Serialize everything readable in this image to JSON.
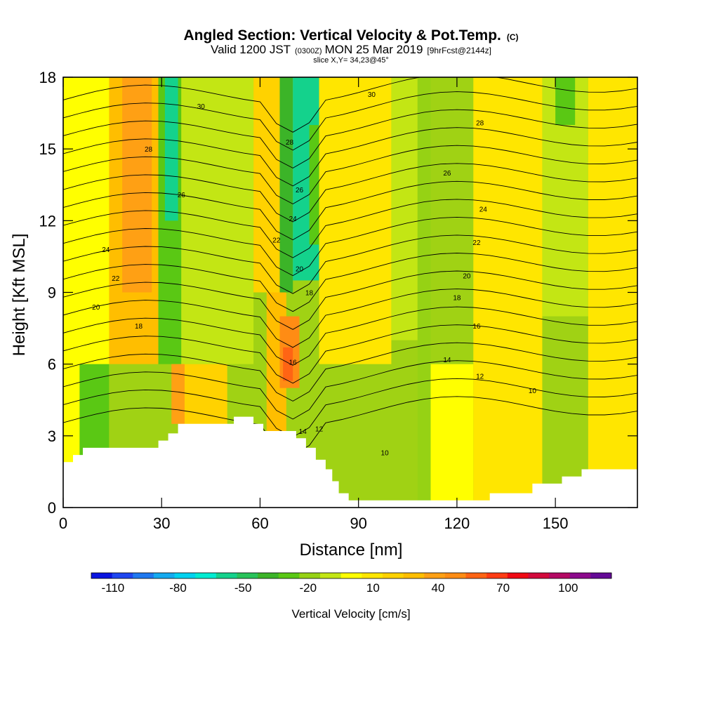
{
  "title": "Angled Section: Vertical Velocity & Pot.Temp.",
  "title_unit": "(C)",
  "subtitle_pre": "Valid 1200 JST",
  "subtitle_zulu": "(0300Z)",
  "subtitle_mid": "MON 25 Mar 2019",
  "subtitle_fcst": "[9hrFcst@2144z]",
  "slice": "slice X,Y= 34,23@45°",
  "chart_data": {
    "type": "heatmap",
    "title": "Angled Section: Vertical Velocity & Pot.Temp.",
    "xlabel": "Distance [nm]",
    "ylabel": "Height [Kft MSL]",
    "xlim": [
      0,
      175
    ],
    "ylim": [
      0,
      18
    ],
    "x_ticks": [
      0,
      30,
      60,
      90,
      120,
      150
    ],
    "y_ticks": [
      0,
      3,
      6,
      9,
      12,
      15,
      18
    ],
    "colorbar": {
      "title": "Vertical Velocity [cm/s]",
      "min": -120,
      "max": 120,
      "step": 10,
      "labels": [
        -110,
        -80,
        -50,
        -20,
        10,
        40,
        70,
        100
      ],
      "colors": [
        "#0a14e0",
        "#1e46f0",
        "#1e78f0",
        "#14aaf0",
        "#00d2f0",
        "#00ecd2",
        "#14d28c",
        "#28c35a",
        "#3cb428",
        "#5ac814",
        "#96d214",
        "#c3e614",
        "#ffff00",
        "#ffe600",
        "#ffd200",
        "#ffbe00",
        "#ffa014",
        "#ff8c14",
        "#ff6414",
        "#ff3c14",
        "#f00a14",
        "#d20a3c",
        "#b40a64",
        "#8c0a8c",
        "#640a96"
      ]
    },
    "terrain": [
      [
        0,
        1.9
      ],
      [
        3,
        1.9
      ],
      [
        3,
        2.2
      ],
      [
        6,
        2.2
      ],
      [
        6,
        2.5
      ],
      [
        29,
        2.5
      ],
      [
        29,
        2.8
      ],
      [
        32,
        2.8
      ],
      [
        32,
        3.1
      ],
      [
        35,
        3.1
      ],
      [
        35,
        3.5
      ],
      [
        52,
        3.5
      ],
      [
        52,
        3.8
      ],
      [
        58,
        3.8
      ],
      [
        58,
        3.5
      ],
      [
        61,
        3.5
      ],
      [
        61,
        3.2
      ],
      [
        71,
        3.2
      ],
      [
        71,
        2.9
      ],
      [
        74,
        2.9
      ],
      [
        74,
        2.5
      ],
      [
        77,
        2.5
      ],
      [
        77,
        2.0
      ],
      [
        80,
        2.0
      ],
      [
        80,
        1.6
      ],
      [
        82,
        1.6
      ],
      [
        82,
        1.1
      ],
      [
        84,
        1.1
      ],
      [
        84,
        0.6
      ],
      [
        87,
        0.6
      ],
      [
        87,
        0.3
      ],
      [
        130,
        0.3
      ],
      [
        130,
        0.6
      ],
      [
        143,
        0.6
      ],
      [
        143,
        1.0
      ],
      [
        152,
        1.0
      ],
      [
        152,
        1.3
      ],
      [
        158,
        1.3
      ],
      [
        158,
        1.6
      ],
      [
        175,
        1.6
      ]
    ],
    "series": [
      {
        "name": "Potential temperature",
        "kind": "contour",
        "levels": [
          10,
          12,
          14,
          16,
          18,
          20,
          22,
          24,
          26,
          28,
          30
        ]
      }
    ],
    "contour_labels": [
      {
        "text": "30",
        "x": 42,
        "y": 16.8
      },
      {
        "text": "28",
        "x": 26,
        "y": 15.0
      },
      {
        "text": "26",
        "x": 36,
        "y": 13.1
      },
      {
        "text": "24",
        "x": 13,
        "y": 10.8
      },
      {
        "text": "22",
        "x": 16,
        "y": 9.6
      },
      {
        "text": "20",
        "x": 10,
        "y": 8.4
      },
      {
        "text": "18",
        "x": 23,
        "y": 7.6
      },
      {
        "text": "28",
        "x": 69,
        "y": 15.3
      },
      {
        "text": "26",
        "x": 72,
        "y": 13.3
      },
      {
        "text": "24",
        "x": 70,
        "y": 12.1
      },
      {
        "text": "22",
        "x": 65,
        "y": 11.2
      },
      {
        "text": "20",
        "x": 72,
        "y": 10.0
      },
      {
        "text": "18",
        "x": 75,
        "y": 9.0
      },
      {
        "text": "16",
        "x": 70,
        "y": 6.1
      },
      {
        "text": "14",
        "x": 73,
        "y": 3.2
      },
      {
        "text": "12",
        "x": 78,
        "y": 3.3
      },
      {
        "text": "10",
        "x": 98,
        "y": 2.3
      },
      {
        "text": "30",
        "x": 94,
        "y": 17.3
      },
      {
        "text": "28",
        "x": 127,
        "y": 16.1
      },
      {
        "text": "26",
        "x": 117,
        "y": 14.0
      },
      {
        "text": "24",
        "x": 128,
        "y": 12.5
      },
      {
        "text": "22",
        "x": 126,
        "y": 11.1
      },
      {
        "text": "20",
        "x": 123,
        "y": 9.7
      },
      {
        "text": "18",
        "x": 120,
        "y": 8.8
      },
      {
        "text": "16",
        "x": 126,
        "y": 7.6
      },
      {
        "text": "14",
        "x": 117,
        "y": 6.2
      },
      {
        "text": "12",
        "x": 127,
        "y": 5.5
      },
      {
        "text": "10",
        "x": 143,
        "y": 4.9
      }
    ]
  }
}
